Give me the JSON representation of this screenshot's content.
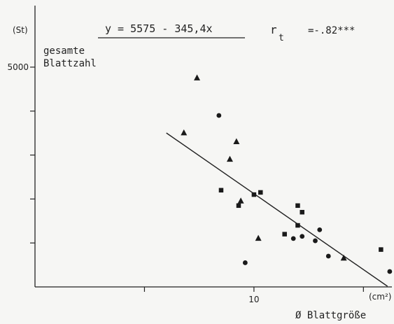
{
  "chart_data": {
    "type": "scatter",
    "title": "",
    "equation": "y = 5575 - 345,4x",
    "correlation_symbol": "r",
    "correlation_subscript": "t",
    "correlation_value": "=-.82***",
    "y_unit": "(St)",
    "ylabel_line1": "gesamte",
    "ylabel_line2": "Blattzahl",
    "x_unit": "(cm²)",
    "xlabel": "Ø Blattgröße",
    "x_ticks": [
      {
        "value": 5,
        "label": ""
      },
      {
        "value": 10,
        "label": "10"
      },
      {
        "value": 15,
        "label": ""
      }
    ],
    "y_ticks": [
      {
        "value": 1000,
        "label": ""
      },
      {
        "value": 2000,
        "label": ""
      },
      {
        "value": 3000,
        "label": ""
      },
      {
        "value": 4000,
        "label": ""
      },
      {
        "value": 5000,
        "label": "5000"
      }
    ],
    "xlim": [
      0,
      16.3
    ],
    "ylim": [
      0,
      6400
    ],
    "grid": false,
    "regression": {
      "intercept": 5575,
      "slope": -345.4,
      "x_range": [
        6.0,
        16.1
      ]
    },
    "series": [
      {
        "marker": "triangle",
        "points": [
          {
            "x": 7.4,
            "y": 4750
          },
          {
            "x": 6.8,
            "y": 3500
          },
          {
            "x": 9.2,
            "y": 3300
          },
          {
            "x": 8.9,
            "y": 2900
          },
          {
            "x": 9.4,
            "y": 1950
          },
          {
            "x": 10.2,
            "y": 1100
          },
          {
            "x": 14.1,
            "y": 650
          }
        ]
      },
      {
        "marker": "circle",
        "points": [
          {
            "x": 8.4,
            "y": 3900
          },
          {
            "x": 9.6,
            "y": 550
          },
          {
            "x": 11.8,
            "y": 1100
          },
          {
            "x": 12.2,
            "y": 1150
          },
          {
            "x": 12.8,
            "y": 1050
          },
          {
            "x": 13.0,
            "y": 1300
          },
          {
            "x": 13.4,
            "y": 700
          },
          {
            "x": 16.2,
            "y": 350
          }
        ]
      },
      {
        "marker": "square",
        "points": [
          {
            "x": 8.5,
            "y": 2200
          },
          {
            "x": 9.3,
            "y": 1850
          },
          {
            "x": 10.0,
            "y": 2100
          },
          {
            "x": 10.3,
            "y": 2150
          },
          {
            "x": 11.4,
            "y": 1200
          },
          {
            "x": 12.0,
            "y": 1850
          },
          {
            "x": 12.2,
            "y": 1700
          },
          {
            "x": 12.0,
            "y": 1400
          },
          {
            "x": 15.8,
            "y": 850
          }
        ]
      }
    ]
  }
}
